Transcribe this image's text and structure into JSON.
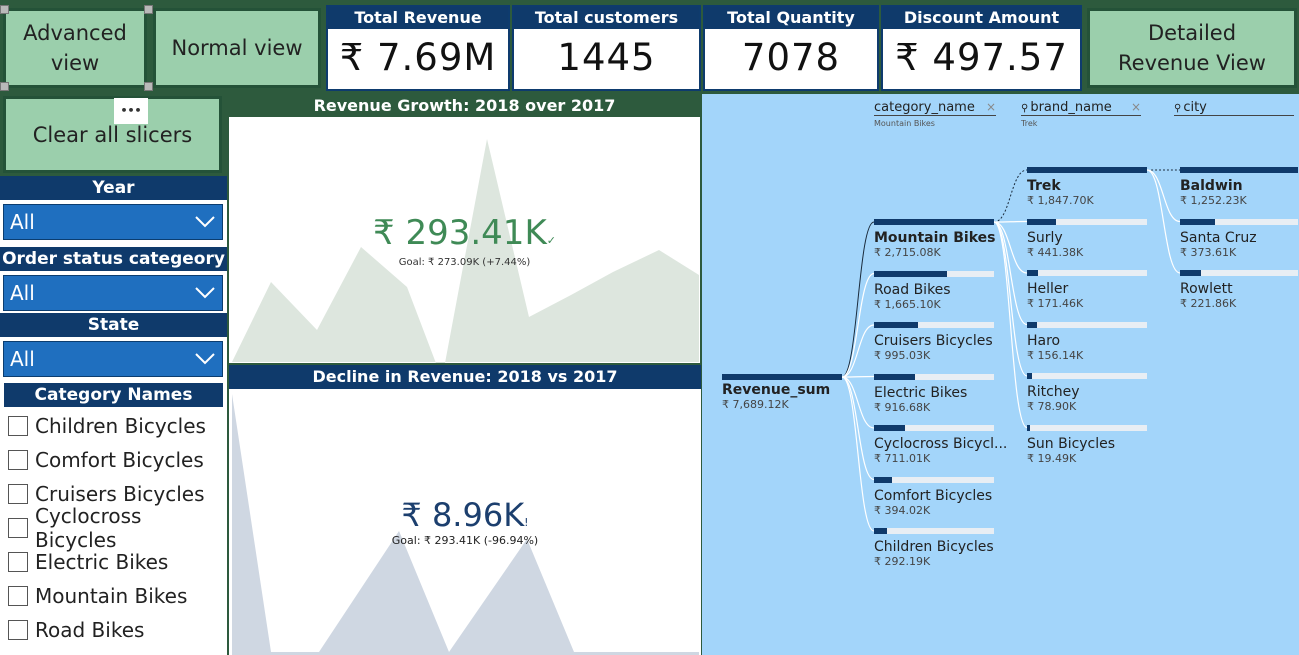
{
  "nav": {
    "advanced_view": "Advanced view",
    "normal_view": "Normal view",
    "detailed_revenue_view": "Detailed Revenue View",
    "clear_all_slicers": "Clear all slicers",
    "more_options": "•••"
  },
  "kpis": [
    {
      "title": "Total Revenue",
      "value": "₹ 7.69M"
    },
    {
      "title": "Total customers",
      "value": "1445"
    },
    {
      "title": "Total Quantity",
      "value": "7078"
    },
    {
      "title": "Discount Amount",
      "value": "₹ 497.57"
    }
  ],
  "slicers": {
    "year": {
      "title": "Year",
      "selected": "All"
    },
    "order_status": {
      "title": "Order status categeory",
      "selected": "All"
    },
    "state": {
      "title": "State",
      "selected": "All"
    },
    "category_names": {
      "title": "Category Names",
      "items": [
        "Children Bicycles",
        "Comfort Bicycles",
        "Cruisers Bicycles",
        "Cyclocross Bicycles",
        "Electric Bikes",
        "Mountain Bikes",
        "Road Bikes"
      ]
    }
  },
  "growth_panel": {
    "title": "Revenue Growth: 2018 over 2017",
    "value": "₹ 293.41K",
    "goal": "Goal: ₹ 273.09K (+7.44%)",
    "status_mark": "✓",
    "color": "#3f8a56"
  },
  "decline_panel": {
    "title": "Decline in Revenue: 2018 vs 2017",
    "value": "₹ 8.96K",
    "goal": "Goal: ₹ 293.41K (-96.94%)",
    "status_mark": "!",
    "color": "#1c3f6e"
  },
  "tree": {
    "headers": [
      {
        "name": "category_name",
        "sub": "Mountain Bikes"
      },
      {
        "name": "brand_name",
        "sub": "Trek"
      },
      {
        "name": "city",
        "sub": ""
      }
    ],
    "close_mark": "×",
    "root": {
      "label": "Revenue_sum",
      "value": "₹ 7,689.12K"
    },
    "categories": [
      {
        "label": "Mountain Bikes",
        "value": "₹ 2,715.08K",
        "fraction": 1.0
      },
      {
        "label": "Road Bikes",
        "value": "₹ 1,665.10K",
        "fraction": 0.61
      },
      {
        "label": "Cruisers Bicycles",
        "value": "₹ 995.03K",
        "fraction": 0.37
      },
      {
        "label": "Electric Bikes",
        "value": "₹ 916.68K",
        "fraction": 0.34
      },
      {
        "label": "Cyclocross Bicycl...",
        "value": "₹ 711.01K",
        "fraction": 0.26
      },
      {
        "label": "Comfort Bicycles",
        "value": "₹ 394.02K",
        "fraction": 0.15
      },
      {
        "label": "Children Bicycles",
        "value": "₹ 292.19K",
        "fraction": 0.11
      }
    ],
    "brands": [
      {
        "label": "Trek",
        "value": "₹ 1,847.70K",
        "fraction": 1.0
      },
      {
        "label": "Surly",
        "value": "₹ 441.38K",
        "fraction": 0.24
      },
      {
        "label": "Heller",
        "value": "₹ 171.46K",
        "fraction": 0.09
      },
      {
        "label": "Haro",
        "value": "₹ 156.14K",
        "fraction": 0.08
      },
      {
        "label": "Ritchey",
        "value": "₹ 78.90K",
        "fraction": 0.04
      },
      {
        "label": "Sun Bicycles",
        "value": "₹ 19.49K",
        "fraction": 0.01
      }
    ],
    "cities": [
      {
        "label": "Baldwin",
        "value": "₹ 1,252.23K",
        "fraction": 1.0
      },
      {
        "label": "Santa Cruz",
        "value": "₹ 373.61K",
        "fraction": 0.3
      },
      {
        "label": "Rowlett",
        "value": "₹ 221.86K",
        "fraction": 0.18
      }
    ]
  },
  "colors": {
    "dark_green": "#2d5a3d",
    "button_green": "#9bcfac",
    "navy": "#0f3a6b",
    "slicer_blue": "#1f6fbf",
    "tree_bg": "#a3d5fa"
  }
}
